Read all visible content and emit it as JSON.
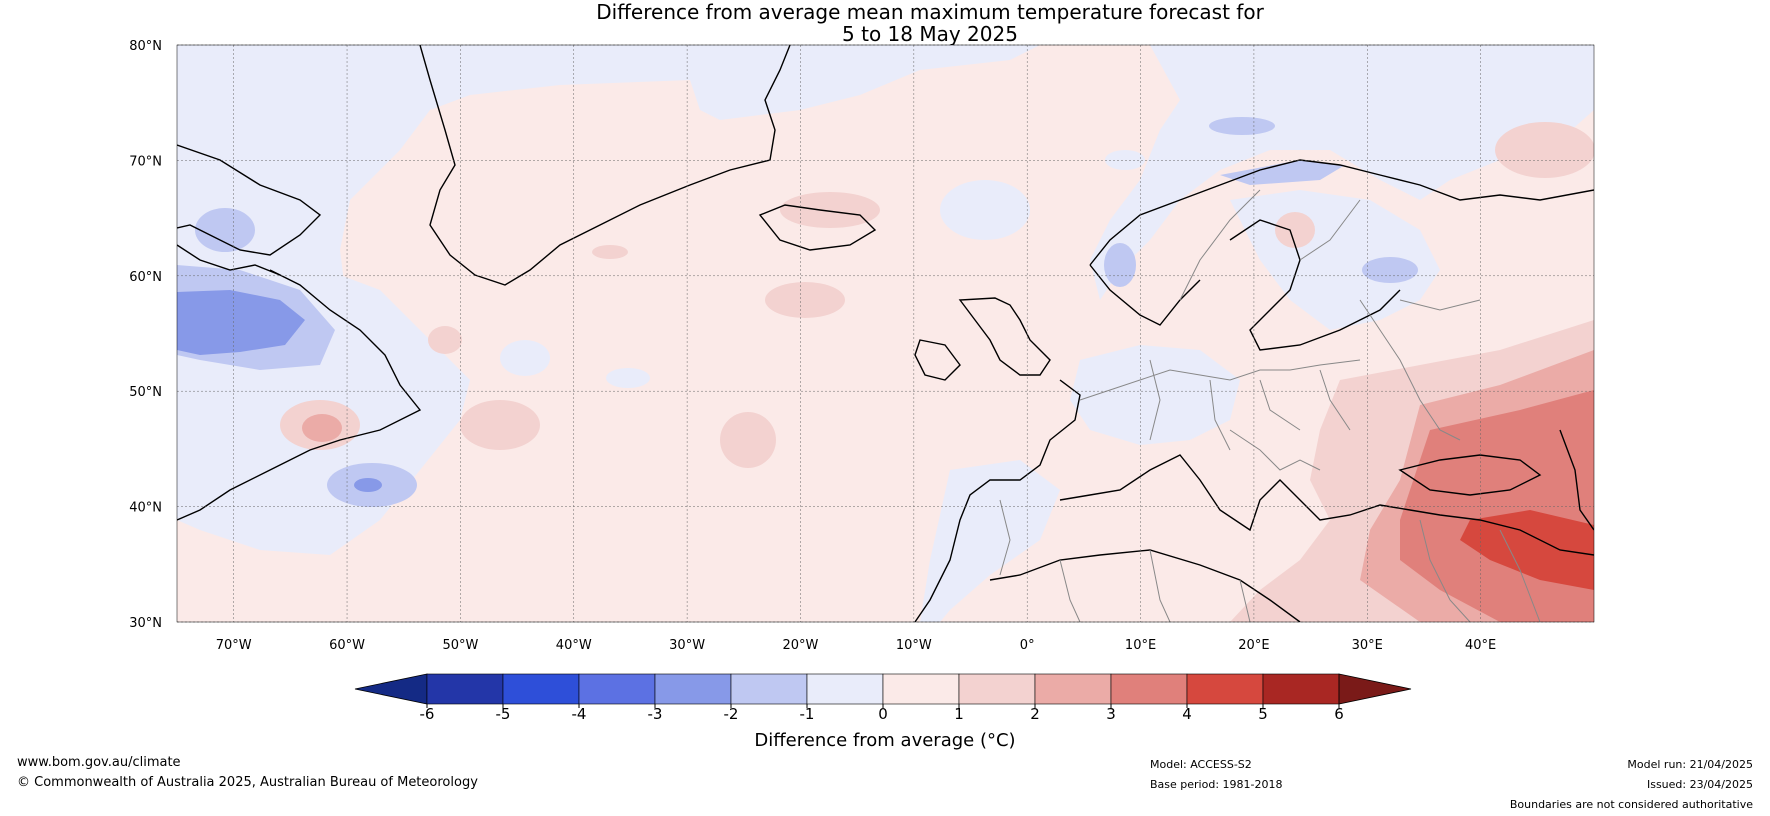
{
  "title": {
    "line1": "Difference from average mean maximum temperature forecast for",
    "line2": "5 to 18 May 2025"
  },
  "map": {
    "lat_labels": [
      "80°N",
      "70°N",
      "60°N",
      "50°N",
      "40°N",
      "30°N"
    ],
    "lon_labels": [
      "70°W",
      "60°W",
      "50°W",
      "40°W",
      "30°W",
      "20°W",
      "10°W",
      "0°",
      "10°E",
      "20°E",
      "30°E",
      "40°E"
    ],
    "lat_range": [
      30,
      80
    ],
    "lon_range": [
      -75,
      50
    ]
  },
  "colorbar": {
    "label": "Difference from average (°C)",
    "ticks": [
      "-6",
      "-5",
      "-4",
      "-3",
      "-2",
      "-1",
      "0",
      "1",
      "2",
      "3",
      "4",
      "5",
      "6"
    ],
    "colors": [
      "#142a85",
      "#2336a8",
      "#2e4fd9",
      "#5c71e3",
      "#8799e8",
      "#bfc8f2",
      "#e9ecfa",
      "#fbeae8",
      "#f3d2d0",
      "#ebaba7",
      "#e0807b",
      "#d6483e",
      "#a92723",
      "#7a1a18"
    ]
  },
  "footer": {
    "url": "www.bom.gov.au/climate",
    "copyright": "© Commonwealth of Australia 2025, Australian Bureau of Meteorology",
    "model": "Model: ACCESS-S2",
    "base_period": "Base period: 1981-2018",
    "model_run": "Model run: 21/04/2025",
    "issued": "Issued: 23/04/2025",
    "boundaries": "Boundaries are not considered authoritative"
  }
}
